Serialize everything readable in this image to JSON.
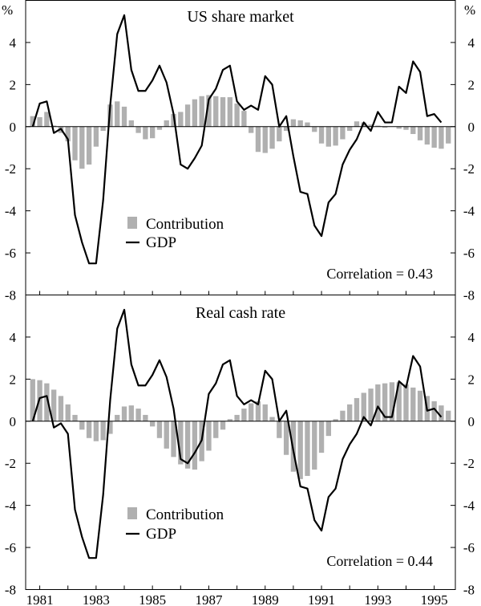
{
  "chart_data": {
    "type": "bar+line",
    "x_tick_labels": [
      "1981",
      "1983",
      "1985",
      "1987",
      "1989",
      "1991",
      "1993",
      "1995"
    ],
    "y_unit": "%",
    "y_ticks": [
      -8,
      -6,
      -4,
      -2,
      0,
      2,
      4
    ],
    "x_start": 1980.75,
    "quarters": 60,
    "gdp": [
      0.0,
      1.1,
      1.2,
      -0.3,
      -0.1,
      -0.6,
      -4.2,
      -5.5,
      -6.5,
      -6.5,
      -3.5,
      1.0,
      4.4,
      5.3,
      2.7,
      1.7,
      1.7,
      2.2,
      2.9,
      2.1,
      0.6,
      -1.8,
      -2.0,
      -1.5,
      -0.9,
      1.3,
      1.8,
      2.7,
      2.9,
      1.2,
      0.8,
      1.0,
      0.8,
      2.4,
      2.0,
      0.0,
      0.5,
      -1.4,
      -3.1,
      -3.2,
      -4.7,
      -5.2,
      -3.6,
      -3.2,
      -1.8,
      -1.1,
      -0.6,
      0.2,
      -0.2,
      0.7,
      0.2,
      0.2,
      1.9,
      1.6,
      3.1,
      2.6,
      0.5,
      0.6,
      0.2,
      null
    ],
    "panels": [
      {
        "title": "US share market",
        "legend": [
          "Contribution",
          "GDP"
        ],
        "correlation_label": "Correlation = 0.43",
        "ylim": [
          -8,
          6
        ],
        "series": [
          {
            "name": "Contribution",
            "values": [
              0.5,
              0.45,
              0.7,
              0.05,
              -0.3,
              -0.7,
              -1.6,
              -2.0,
              -1.8,
              -0.95,
              -0.2,
              1.05,
              1.2,
              0.95,
              0.3,
              -0.3,
              -0.6,
              -0.55,
              -0.15,
              0.3,
              0.6,
              0.7,
              1.05,
              1.3,
              1.45,
              1.5,
              1.45,
              1.4,
              1.4,
              1.1,
              0.75,
              -0.3,
              -1.2,
              -1.25,
              -1.05,
              -0.7,
              -0.2,
              0.35,
              0.3,
              0.2,
              -0.25,
              -0.8,
              -0.95,
              -0.9,
              -0.6,
              -0.2,
              0.25,
              0.2,
              0.1,
              0.05,
              -0.05,
              0.0,
              -0.1,
              -0.15,
              -0.35,
              -0.65,
              -0.85,
              -1.0,
              -1.05,
              -0.8
            ]
          },
          {
            "name": "GDP"
          }
        ]
      },
      {
        "title": "Real cash rate",
        "legend": [
          "Contribution",
          "GDP"
        ],
        "correlation_label": "Correlation = 0.44",
        "ylim": [
          -8,
          6
        ],
        "series": [
          {
            "name": "Contribution",
            "values": [
              2.0,
              1.95,
              1.8,
              1.5,
              1.2,
              0.8,
              0.3,
              -0.4,
              -0.8,
              -0.95,
              -0.9,
              -0.6,
              0.3,
              0.7,
              0.75,
              0.6,
              0.3,
              -0.25,
              -0.8,
              -1.3,
              -1.7,
              -2.05,
              -2.25,
              -2.3,
              -1.9,
              -1.4,
              -0.8,
              -0.4,
              0.1,
              0.3,
              0.6,
              0.85,
              0.95,
              0.8,
              0.2,
              -0.8,
              -1.6,
              -2.4,
              -2.75,
              -2.6,
              -2.3,
              -1.5,
              -0.7,
              0.1,
              0.5,
              0.8,
              1.1,
              1.35,
              1.55,
              1.75,
              1.8,
              1.85,
              1.85,
              1.75,
              1.6,
              1.45,
              1.2,
              0.95,
              0.75,
              0.5
            ]
          },
          {
            "name": "GDP"
          }
        ]
      }
    ]
  }
}
